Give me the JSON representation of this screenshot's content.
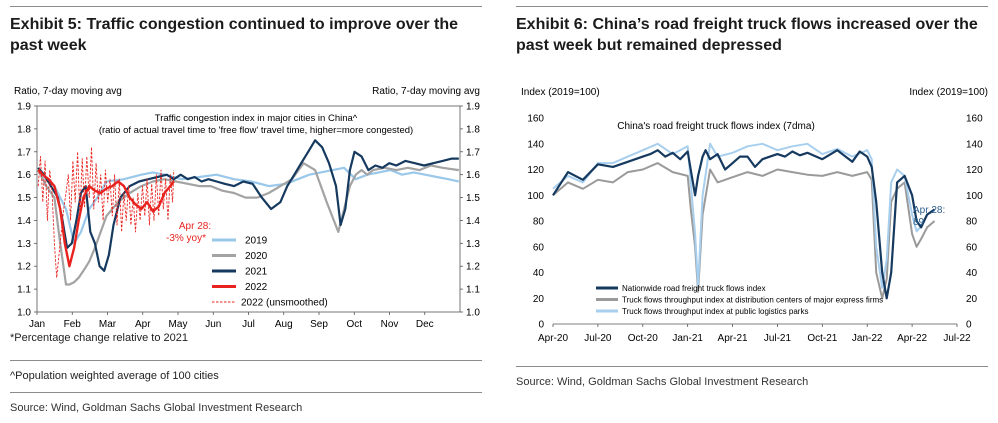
{
  "left": {
    "title": "Exhibit 5: Traffic congestion continued to improve over the past week",
    "footnote": "*Percentage change relative to 2021",
    "population_note": "^Population weighted average of 100 cities",
    "source": "Source: Wind, Goldman Sachs Global Investment Research"
  },
  "right": {
    "title": "Exhibit 6: China’s road freight truck flows increased over the past week but remained depressed",
    "source": "Source: Wind, Goldman Sachs Global Investment Research"
  },
  "colors": {
    "c2019": "#9ac8ea",
    "c2020": "#a3a3a3",
    "c2021": "#163a5f",
    "c2022": "#e8231f",
    "truck_nationwide": "#163a5f",
    "truck_express": "#9a9a9a",
    "truck_parks": "#a8cfee",
    "apr_label_right": "#2b5d8c"
  },
  "chart_data": [
    {
      "type": "line",
      "title": "Traffic congestion index in major cities in China^",
      "subtitle": "(ratio of actual travel time to 'free flow' travel time, higher=more congested)",
      "ylabel_left": "Ratio, 7-day moving avg",
      "ylabel_right": "Ratio, 7-day moving avg",
      "ylim": [
        1.0,
        1.9
      ],
      "yticks": [
        "1.0",
        "1.1",
        "1.2",
        "1.3",
        "1.4",
        "1.5",
        "1.6",
        "1.7",
        "1.8",
        "1.9"
      ],
      "categories": [
        "Jan",
        "Feb",
        "Mar",
        "Apr",
        "May",
        "Jun",
        "Jul",
        "Aug",
        "Sep",
        "Oct",
        "Nov",
        "Dec"
      ],
      "annotation": [
        "Apr 28:",
        "-3% yoy*"
      ],
      "series": [
        {
          "name": "2019",
          "x": [
            1,
            8,
            15,
            25,
            32,
            38,
            45,
            52,
            60,
            75,
            90,
            100,
            110,
            125,
            140,
            155,
            170,
            185,
            200,
            215,
            225,
            235,
            245,
            255,
            265,
            275,
            285,
            295,
            305,
            315,
            325,
            335,
            345,
            355,
            364
          ],
          "values": [
            1.62,
            1.58,
            1.55,
            1.45,
            1.3,
            1.35,
            1.45,
            1.5,
            1.57,
            1.58,
            1.6,
            1.61,
            1.6,
            1.58,
            1.59,
            1.6,
            1.58,
            1.57,
            1.55,
            1.56,
            1.58,
            1.6,
            1.61,
            1.62,
            1.63,
            1.58,
            1.6,
            1.61,
            1.62,
            1.6,
            1.61,
            1.6,
            1.59,
            1.58,
            1.57
          ]
        },
        {
          "name": "2020",
          "x": [
            1,
            8,
            15,
            20,
            25,
            28,
            32,
            36,
            40,
            45,
            50,
            55,
            60,
            70,
            80,
            90,
            100,
            110,
            120,
            130,
            140,
            150,
            160,
            170,
            180,
            190,
            200,
            210,
            220,
            230,
            240,
            250,
            260,
            270,
            275,
            280,
            285,
            290,
            300,
            310,
            320,
            330,
            340,
            350,
            364
          ],
          "values": [
            1.62,
            1.55,
            1.5,
            1.3,
            1.12,
            1.12,
            1.13,
            1.15,
            1.18,
            1.22,
            1.28,
            1.35,
            1.42,
            1.48,
            1.52,
            1.55,
            1.57,
            1.58,
            1.57,
            1.56,
            1.55,
            1.55,
            1.53,
            1.52,
            1.5,
            1.5,
            1.52,
            1.55,
            1.58,
            1.65,
            1.62,
            1.48,
            1.35,
            1.55,
            1.6,
            1.62,
            1.6,
            1.62,
            1.63,
            1.62,
            1.63,
            1.62,
            1.64,
            1.63,
            1.62
          ]
        },
        {
          "name": "2021",
          "x": [
            1,
            6,
            12,
            18,
            22,
            26,
            30,
            34,
            38,
            42,
            46,
            50,
            54,
            58,
            62,
            66,
            72,
            80,
            88,
            96,
            104,
            112,
            118,
            124,
            130,
            136,
            142,
            148,
            155,
            162,
            170,
            178,
            186,
            194,
            202,
            210,
            216,
            222,
            228,
            234,
            240,
            246,
            252,
            258,
            262,
            266,
            270,
            274,
            280,
            286,
            292,
            298,
            304,
            310,
            318,
            326,
            334,
            342,
            350,
            358,
            364
          ],
          "values": [
            1.63,
            1.6,
            1.55,
            1.5,
            1.4,
            1.28,
            1.3,
            1.4,
            1.52,
            1.55,
            1.35,
            1.3,
            1.2,
            1.18,
            1.25,
            1.38,
            1.5,
            1.55,
            1.57,
            1.58,
            1.59,
            1.6,
            1.58,
            1.6,
            1.58,
            1.59,
            1.57,
            1.58,
            1.57,
            1.56,
            1.55,
            1.57,
            1.56,
            1.5,
            1.45,
            1.48,
            1.55,
            1.6,
            1.65,
            1.7,
            1.75,
            1.72,
            1.65,
            1.55,
            1.38,
            1.45,
            1.62,
            1.7,
            1.68,
            1.62,
            1.64,
            1.63,
            1.65,
            1.64,
            1.66,
            1.65,
            1.64,
            1.65,
            1.66,
            1.67,
            1.67
          ]
        },
        {
          "name": "2022",
          "x": [
            1,
            5,
            10,
            15,
            20,
            24,
            28,
            32,
            36,
            40,
            45,
            50,
            55,
            60,
            65,
            70,
            75,
            80,
            85,
            90,
            95,
            100,
            105,
            110,
            115,
            118
          ],
          "values": [
            1.62,
            1.6,
            1.58,
            1.55,
            1.45,
            1.3,
            1.2,
            1.28,
            1.4,
            1.5,
            1.55,
            1.53,
            1.52,
            1.54,
            1.55,
            1.57,
            1.55,
            1.5,
            1.47,
            1.45,
            1.48,
            1.44,
            1.46,
            1.52,
            1.55,
            1.57
          ]
        },
        {
          "name": "2022 (unsmoothed)",
          "x": [
            1,
            3,
            5,
            7,
            9,
            11,
            13,
            15,
            17,
            19,
            21,
            23,
            25,
            27,
            29,
            31,
            33,
            35,
            37,
            39,
            41,
            43,
            45,
            47,
            49,
            51,
            53,
            55,
            57,
            59,
            61,
            63,
            65,
            67,
            69,
            71,
            73,
            75,
            77,
            79,
            81,
            83,
            85,
            87,
            89,
            91,
            93,
            95,
            97,
            99,
            101,
            103,
            105,
            107,
            109,
            111,
            113,
            115,
            117,
            118
          ],
          "values": [
            1.55,
            1.68,
            1.48,
            1.66,
            1.4,
            1.62,
            1.52,
            1.3,
            1.15,
            1.25,
            1.35,
            1.45,
            1.52,
            1.6,
            1.4,
            1.66,
            1.48,
            1.7,
            1.42,
            1.67,
            1.46,
            1.68,
            1.5,
            1.72,
            1.45,
            1.65,
            1.48,
            1.6,
            1.4,
            1.62,
            1.48,
            1.58,
            1.42,
            1.6,
            1.38,
            1.58,
            1.35,
            1.52,
            1.4,
            1.55,
            1.38,
            1.5,
            1.35,
            1.52,
            1.4,
            1.55,
            1.42,
            1.58,
            1.38,
            1.56,
            1.4,
            1.6,
            1.42,
            1.62,
            1.45,
            1.58,
            1.4,
            1.6,
            1.48,
            1.62
          ]
        }
      ]
    },
    {
      "type": "line",
      "title": "China's road freight truck flows index (7dma)",
      "ylabel_left": "Index (2019=100)",
      "ylabel_right": "Index (2019=100)",
      "ylim": [
        0,
        160
      ],
      "yticks": [
        "0",
        "20",
        "40",
        "60",
        "80",
        "100",
        "120",
        "140",
        "160"
      ],
      "categories": [
        "Apr-20",
        "Jul-20",
        "Oct-20",
        "Jan-21",
        "Apr-21",
        "Jul-21",
        "Oct-21",
        "Jan-22",
        "Apr-22",
        "Jul-22"
      ],
      "annotation": [
        "Apr 28:",
        "89"
      ],
      "series": [
        {
          "name": "Nationwide road freight truck flows index",
          "x": [
            0,
            1,
            2,
            3,
            4,
            5,
            5.5,
            6,
            6.5,
            7,
            7.5,
            8,
            8.5,
            9,
            9.2,
            9.5,
            9.7,
            10,
            10.2,
            10.5,
            11,
            11.5,
            12,
            12.5,
            13,
            13.5,
            14,
            14.5,
            15,
            15.5,
            16,
            16.5,
            17,
            18,
            19,
            20,
            20.5,
            21,
            21.3,
            21.6,
            22,
            22.3,
            22.6,
            23,
            23.5,
            24,
            24.3,
            24.6,
            25,
            25.5
          ],
          "values": [
            100,
            118,
            112,
            124,
            122,
            126,
            128,
            130,
            132,
            135,
            130,
            133,
            128,
            134,
            120,
            100,
            115,
            130,
            135,
            128,
            132,
            120,
            125,
            130,
            130,
            122,
            128,
            130,
            132,
            130,
            134,
            131,
            133,
            128,
            135,
            126,
            134,
            130,
            122,
            95,
            40,
            20,
            40,
            110,
            115,
            100,
            80,
            75,
            85,
            89
          ]
        },
        {
          "name": "Truck flows throughput index at distribution centers of major express firms",
          "x": [
            0,
            1,
            2,
            3,
            4,
            5,
            6,
            7,
            8,
            9,
            9.2,
            9.5,
            9.7,
            10,
            10.5,
            11,
            12,
            13,
            14,
            15,
            16,
            17,
            18,
            19,
            20,
            21,
            21.3,
            21.6,
            22,
            22.3,
            22.6,
            23,
            23.5,
            24,
            24.3,
            24.6,
            25,
            25.5
          ],
          "values": [
            100,
            110,
            105,
            112,
            110,
            118,
            120,
            125,
            118,
            115,
            90,
            60,
            25,
            85,
            120,
            110,
            114,
            118,
            115,
            120,
            118,
            116,
            115,
            118,
            115,
            118,
            112,
            40,
            20,
            35,
            95,
            105,
            110,
            70,
            60,
            66,
            75,
            80
          ]
        },
        {
          "name": "Truck flows throughput index at public logistics parks",
          "x": [
            0,
            1,
            2,
            3,
            4,
            5,
            6,
            7,
            8,
            9,
            9.2,
            9.5,
            9.7,
            10,
            10.5,
            11,
            12,
            13,
            14,
            15,
            16,
            17,
            18,
            19,
            20,
            21,
            21.3,
            21.6,
            22,
            22.3,
            22.6,
            23,
            23.5,
            24,
            24.3,
            24.6,
            25,
            25.5
          ],
          "values": [
            105,
            115,
            110,
            125,
            125,
            130,
            135,
            140,
            132,
            138,
            110,
            70,
            30,
            100,
            140,
            130,
            133,
            138,
            140,
            135,
            138,
            140,
            132,
            136,
            130,
            135,
            128,
            60,
            28,
            50,
            110,
            120,
            115,
            85,
            72,
            76,
            85,
            88
          ]
        }
      ]
    }
  ]
}
